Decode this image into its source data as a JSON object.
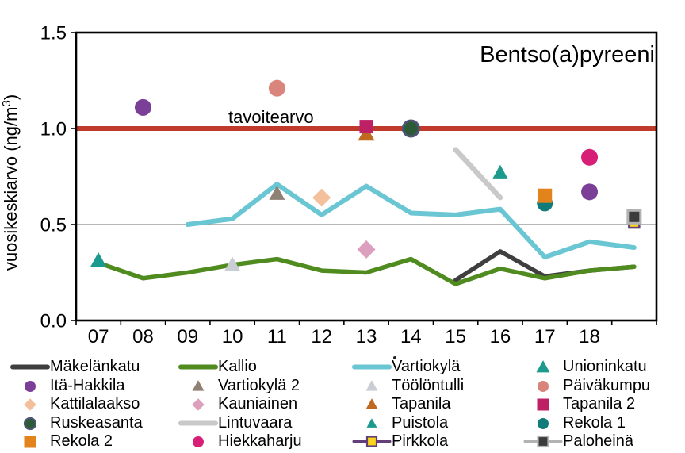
{
  "chart_data": {
    "type": "line",
    "title": "Bentso(a)pyreeni",
    "ylabel": "vuosikeskiarvo (ng/m³)",
    "ylabel_parts": {
      "main": "vuosikeskiarvo (ng/m",
      "sup": "3",
      "close": ")"
    },
    "ylim": [
      0,
      1.5
    ],
    "ytick_values": [
      0,
      0.5,
      1.0,
      1.5
    ],
    "ytick_labels": [
      "0.0",
      "0.5",
      "1.0",
      "1.5"
    ],
    "x_labels": [
      "07",
      "08",
      "09",
      "10",
      "11",
      "12",
      "13",
      "14",
      "15",
      "16",
      "17",
      "18"
    ],
    "x_slot_count": 13,
    "gridline_values": [
      0.5
    ],
    "grid_color": "#8c8c8c",
    "reference_line": {
      "label": "tavoitearvo",
      "value": 1.0,
      "color": "#bf3a2b",
      "width": 6
    },
    "series": [
      {
        "name": "Mäkelänkatu",
        "kind": "line",
        "color": "#3f3f3f",
        "width": 5.5,
        "points": [
          [
            8,
            0.21
          ],
          [
            9,
            0.36
          ],
          [
            10,
            0.23
          ],
          [
            11,
            0.26
          ],
          [
            12,
            0.28
          ]
        ],
        "legend": {
          "glyph": "line"
        }
      },
      {
        "name": "Kallio",
        "kind": "line",
        "color": "#4f8b1f",
        "width": 5.5,
        "points": [
          [
            0,
            0.3
          ],
          [
            1,
            0.22
          ],
          [
            2,
            0.25
          ],
          [
            3,
            0.29
          ],
          [
            4,
            0.32
          ],
          [
            5,
            0.26
          ],
          [
            6,
            0.25
          ],
          [
            7,
            0.32
          ],
          [
            8,
            0.19
          ],
          [
            9,
            0.27
          ],
          [
            10,
            0.22
          ],
          [
            11,
            0.26
          ],
          [
            12,
            0.28
          ]
        ],
        "legend": {
          "glyph": "line"
        }
      },
      {
        "name": "Vartiokylä",
        "kind": "line",
        "color": "#6ac6d3",
        "width": 6,
        "points": [
          [
            2,
            0.5
          ],
          [
            3,
            0.53
          ],
          [
            4,
            0.71
          ],
          [
            5,
            0.55
          ],
          [
            6,
            0.7
          ],
          [
            7,
            0.56
          ],
          [
            8,
            0.55
          ],
          [
            9,
            0.58
          ],
          [
            10,
            0.33
          ],
          [
            11,
            0.41
          ],
          [
            12,
            0.38
          ]
        ],
        "legend": {
          "glyph": "line"
        }
      },
      {
        "name": "Unioninkatu",
        "kind": "scatter",
        "marker": "triangle",
        "fill": "#1b9a8d",
        "size": 21,
        "points": [
          [
            0,
            0.31
          ]
        ],
        "legend": {
          "glyph": "marker",
          "size": 17
        }
      },
      {
        "name": "Itä-Hakkila",
        "kind": "scatter",
        "marker": "circle",
        "fill": "#7b3f98",
        "size": 21,
        "points": [
          [
            1,
            1.11
          ],
          [
            11,
            0.67
          ]
        ],
        "legend": {
          "glyph": "marker",
          "size": 14
        }
      },
      {
        "name": "Vartiokylä 2",
        "kind": "scatter",
        "marker": "triangle",
        "fill": "#8f8074",
        "size": 20,
        "points": [
          [
            4,
            0.66
          ]
        ],
        "legend": {
          "glyph": "marker",
          "size": 15
        }
      },
      {
        "name": "Töölöntulli",
        "kind": "scatter",
        "marker": "triangle",
        "fill": "#c9cdd4",
        "size": 20,
        "points": [
          [
            3,
            0.29
          ]
        ],
        "legend": {
          "glyph": "marker",
          "size": 15
        }
      },
      {
        "name": "Päiväkumpu",
        "kind": "scatter",
        "marker": "circle",
        "fill": "#d9857b",
        "size": 21,
        "points": [
          [
            4,
            1.21
          ]
        ],
        "legend": {
          "glyph": "marker",
          "size": 14
        }
      },
      {
        "name": "Kattilalaakso",
        "kind": "scatter",
        "marker": "diamond",
        "fill": "#f4c09c",
        "size": 21,
        "points": [
          [
            5,
            0.64
          ]
        ],
        "legend": {
          "glyph": "marker",
          "size": 14
        }
      },
      {
        "name": "Kauniainen",
        "kind": "scatter",
        "marker": "diamond",
        "fill": "#dd9fbe",
        "size": 21,
        "points": [
          [
            6,
            0.37
          ]
        ],
        "legend": {
          "glyph": "marker",
          "size": 14
        }
      },
      {
        "name": "Tapanila",
        "kind": "scatter",
        "marker": "triangle",
        "fill": "#c06a20",
        "size": 21,
        "points": [
          [
            6,
            0.97
          ]
        ],
        "legend": {
          "glyph": "marker",
          "size": 15
        }
      },
      {
        "name": "Tapanila 2",
        "kind": "scatter",
        "marker": "square",
        "fill": "#be2066",
        "size": 17,
        "points": [
          [
            6,
            1.01
          ]
        ],
        "legend": {
          "glyph": "marker",
          "size": 15
        }
      },
      {
        "name": "Ruskeasanta",
        "kind": "scatter",
        "marker": "circle",
        "fill": "#2d5b38",
        "stroke": "#4d5575",
        "stroke_width": 3,
        "size": 20,
        "points": [
          [
            7,
            1.0
          ]
        ],
        "legend": {
          "glyph": "marker",
          "size": 14
        }
      },
      {
        "name": "Lintuvaara",
        "kind": "line",
        "color": "#c9c9c9",
        "width": 6.5,
        "points": [
          [
            8,
            0.89
          ],
          [
            9,
            0.64
          ]
        ],
        "legend": {
          "glyph": "line"
        }
      },
      {
        "name": "Puistola",
        "kind": "scatter",
        "marker": "triangle",
        "fill": "#1b9a8d",
        "size": 19,
        "points": [
          [
            9,
            0.77
          ]
        ],
        "legend": {
          "glyph": "marker",
          "size": 13
        }
      },
      {
        "name": "Rekola 1",
        "kind": "scatter",
        "marker": "circle",
        "fill": "#107c79",
        "size": 20,
        "points": [
          [
            10,
            0.61
          ]
        ],
        "legend": {
          "glyph": "marker",
          "size": 14
        }
      },
      {
        "name": "Rekola 2",
        "kind": "scatter",
        "marker": "square",
        "fill": "#e2831c",
        "size": 18,
        "points": [
          [
            10,
            0.65
          ]
        ],
        "legend": {
          "glyph": "marker",
          "size": 15
        }
      },
      {
        "name": "Hiekkaharju",
        "kind": "scatter",
        "marker": "circle",
        "fill": "#d81f78",
        "size": 21,
        "points": [
          [
            11,
            0.85
          ]
        ],
        "legend": {
          "glyph": "marker",
          "size": 14
        }
      },
      {
        "name": "Pirkkola",
        "kind": "scatter",
        "marker": "square",
        "fill": "#f8d41c",
        "stroke": "#633e79",
        "stroke_width": 2.5,
        "size": 13,
        "points": [
          [
            12,
            0.51
          ]
        ],
        "legend": {
          "glyph": "line+marker",
          "line_color": "#633e79",
          "size": 12
        }
      },
      {
        "name": "Paloheinä",
        "kind": "scatter",
        "marker": "square",
        "fill": "#3b3b3b",
        "stroke": "#b3b3b3",
        "stroke_width": 3,
        "size": 16,
        "points": [
          [
            12,
            0.54
          ]
        ],
        "legend": {
          "glyph": "line+marker",
          "line_color": "#b3b3b3",
          "size": 13
        }
      }
    ]
  },
  "legend": {
    "columns": 4,
    "order": [
      "Mäkelänkatu",
      "Kallio",
      "Vartiokylä",
      "Unioninkatu",
      "Itä-Hakkila",
      "Vartiokylä 2",
      "Töölöntulli",
      "Päiväkumpu",
      "Kattilalaakso",
      "Kauniainen",
      "Tapanila",
      "Tapanila 2",
      "Ruskeasanta",
      "Lintuvaara",
      "Puistola",
      "Rekola 1",
      "Rekola 2",
      "Hiekkaharju",
      "Pirkkola",
      "Paloheinä"
    ]
  },
  "artifacts": {
    "stray_dot": "."
  }
}
